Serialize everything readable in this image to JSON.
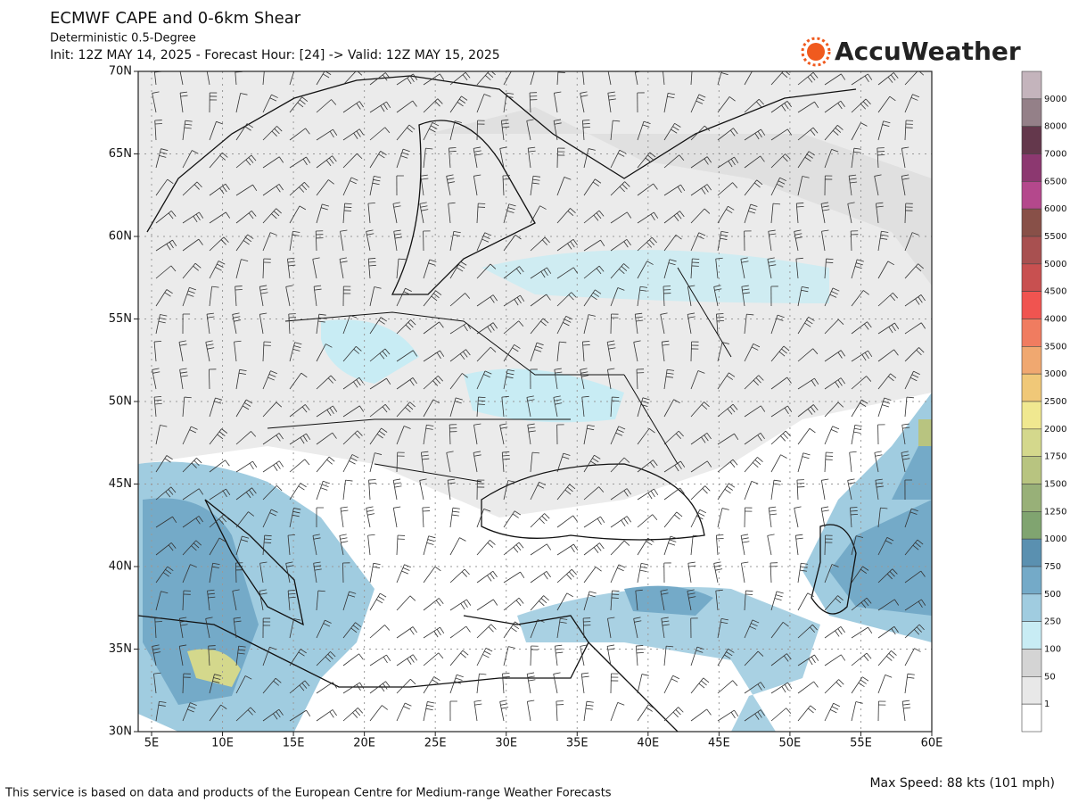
{
  "header": {
    "title": "ECMWF CAPE and 0-6km Shear",
    "subtitle": "Deterministic 0.5-Degree",
    "init": "Init: 12Z MAY 14, 2025 - Forecast Hour: [24] -> Valid: 12Z MAY 15, 2025",
    "logo": "AccuWeather"
  },
  "map": {
    "lat_labels": [
      "70N",
      "65N",
      "60N",
      "55N",
      "50N",
      "45N",
      "40N",
      "35N",
      "30N"
    ],
    "lon_labels": [
      "5E",
      "10E",
      "15E",
      "20E",
      "25E",
      "30E",
      "35E",
      "40E",
      "45E",
      "50E",
      "55E",
      "60E"
    ]
  },
  "colorbar": {
    "labels": [
      "9000",
      "8000",
      "7000",
      "6500",
      "6000",
      "5500",
      "5000",
      "4500",
      "4000",
      "3500",
      "3000",
      "2500",
      "2000",
      "1750",
      "1500",
      "1250",
      "1000",
      "750",
      "500",
      "250",
      "100",
      "50",
      "1"
    ],
    "colors": [
      "#c4b4bc",
      "#948088",
      "#64384c",
      "#8c3870",
      "#b4488c",
      "#885048",
      "#a85050",
      "#c85050",
      "#f05450",
      "#f07c60",
      "#f0a870",
      "#f0c878",
      "#f0e890",
      "#d4d88c",
      "#b8c480",
      "#98b078",
      "#80a470",
      "#5a90b0",
      "#74aac8",
      "#a0cce0",
      "#c8ecf4",
      "#d4d4d4",
      "#e8e8e8",
      "#ffffff"
    ]
  },
  "footer": {
    "credit": "This service is based on data and products of the European Centre for Medium-range Weather Forecasts",
    "max_speed": "Max Speed: 88 kts (101 mph)"
  }
}
